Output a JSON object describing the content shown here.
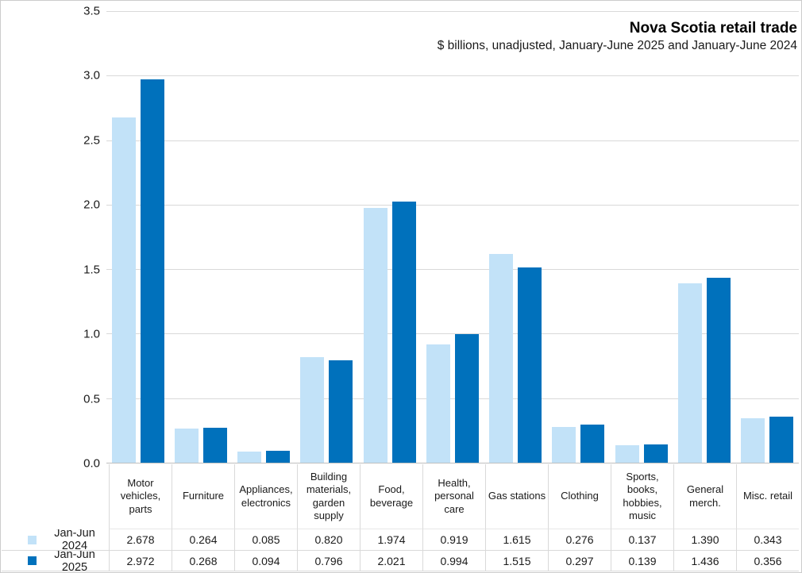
{
  "chart_data": {
    "type": "bar",
    "title": "Nova Scotia retail trade",
    "subtitle": "$ billions, unadjusted, January-June 2025 and January-June 2024",
    "categories": [
      "Motor vehicles, parts",
      "Furniture",
      "Appliances, electronics",
      "Building materials, garden supply",
      "Food, beverage",
      "Health, personal care",
      "Gas stations",
      "Clothing",
      "Sports, books, hobbies, music",
      "General merch.",
      "Misc. retail"
    ],
    "series": [
      {
        "name": "Jan-Jun 2024",
        "color": "#c2e2f8",
        "values": [
          2.678,
          0.264,
          0.085,
          0.82,
          1.974,
          0.919,
          1.615,
          0.276,
          0.137,
          1.39,
          0.343
        ]
      },
      {
        "name": "Jan-Jun 2025",
        "color": "#0071bc",
        "values": [
          2.972,
          0.268,
          0.094,
          0.796,
          2.021,
          0.994,
          1.515,
          0.297,
          0.139,
          1.436,
          0.356
        ]
      }
    ],
    "value_labels": [
      [
        "2.678",
        "0.264",
        "0.085",
        "0.820",
        "1.974",
        "0.919",
        "1.615",
        "0.276",
        "0.137",
        "1.390",
        "0.343"
      ],
      [
        "2.972",
        "0.268",
        "0.094",
        "0.796",
        "2.021",
        "0.994",
        "1.515",
        "0.297",
        "0.139",
        "1.436",
        "0.356"
      ]
    ],
    "ylim": [
      0,
      3.5
    ],
    "yticks": [
      "0.0",
      "0.5",
      "1.0",
      "1.5",
      "2.0",
      "2.5",
      "3.0",
      "3.5"
    ],
    "grid": true,
    "legend_position": "data-table-below-chart"
  }
}
